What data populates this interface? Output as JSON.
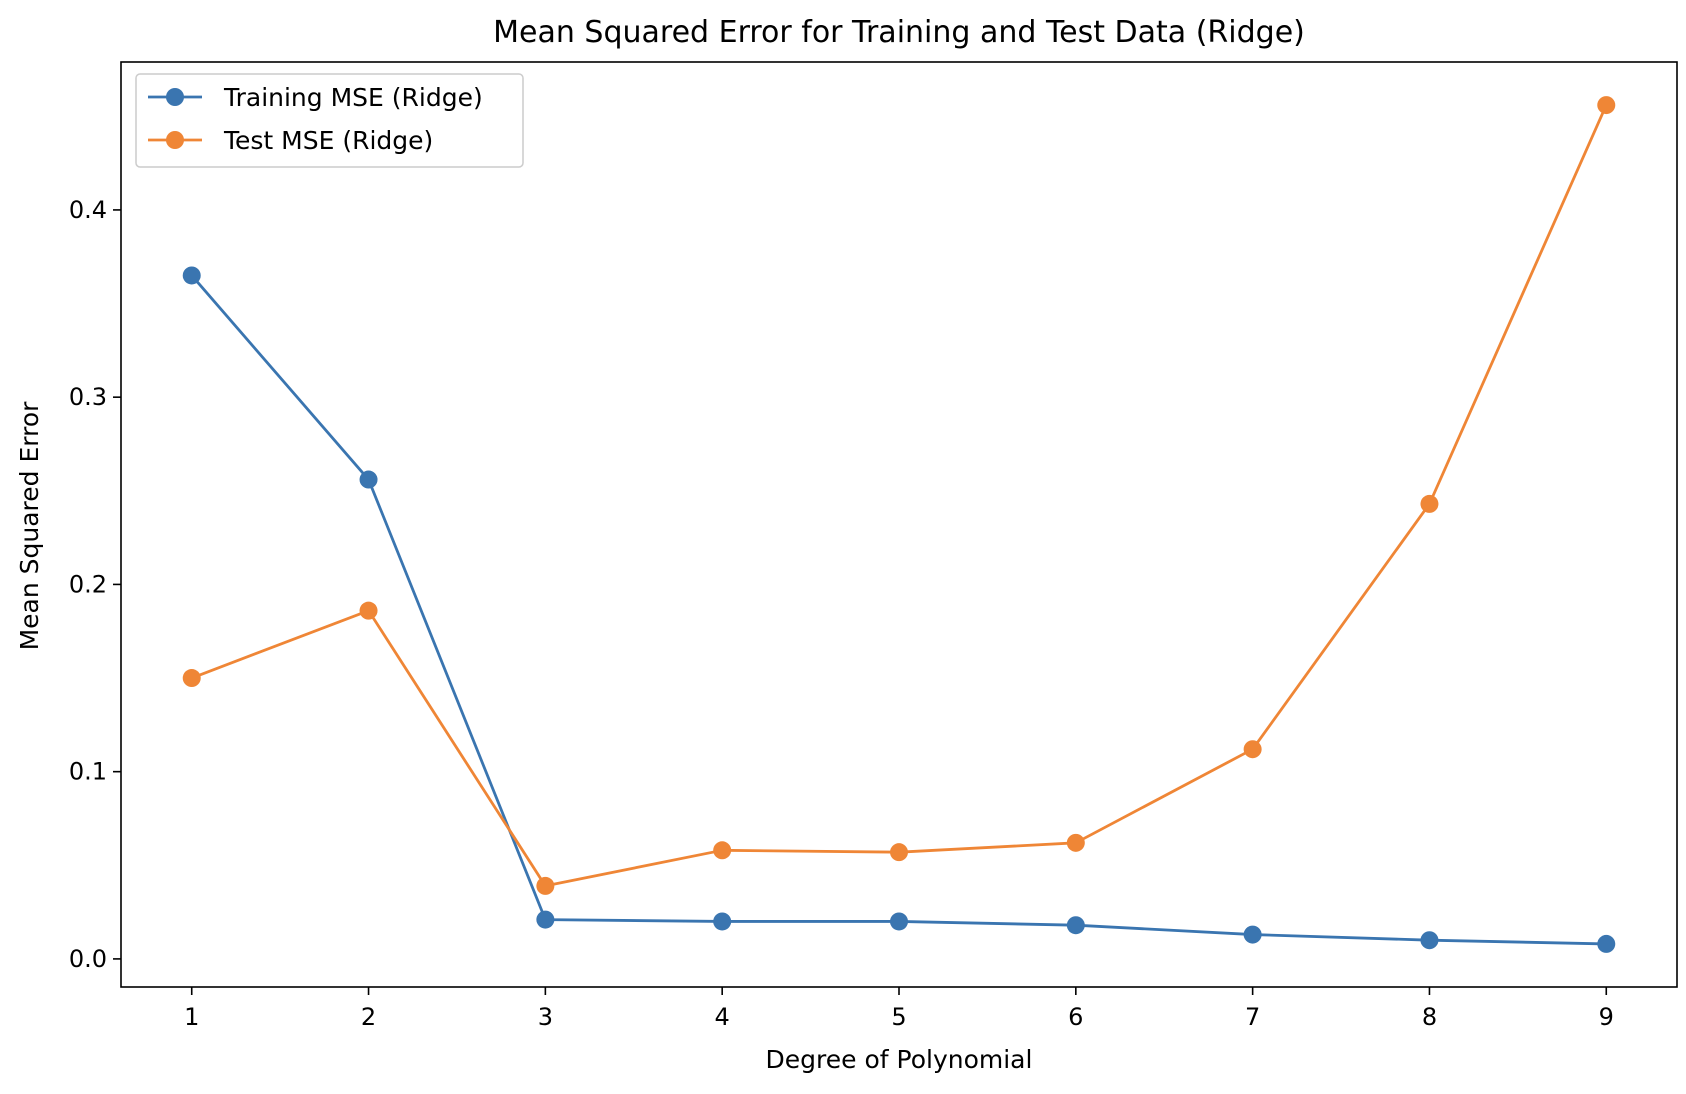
{
  "chart_data": {
    "type": "line",
    "title": "Mean Squared Error for Training and Test Data (Ridge)",
    "xlabel": "Degree of Polynomial",
    "ylabel": "Mean Squared Error",
    "x": [
      1,
      2,
      3,
      4,
      5,
      6,
      7,
      8,
      9
    ],
    "xticks": [
      1,
      2,
      3,
      4,
      5,
      6,
      7,
      8,
      9
    ],
    "xtick_labels": [
      "1",
      "2",
      "3",
      "4",
      "5",
      "6",
      "7",
      "8",
      "9"
    ],
    "yticks": [
      0.0,
      0.1,
      0.2,
      0.3,
      0.4
    ],
    "ytick_labels": [
      "0.0",
      "0.1",
      "0.2",
      "0.3",
      "0.4"
    ],
    "xlim": [
      0.6,
      9.4
    ],
    "ylim": [
      -0.015,
      0.479
    ],
    "grid": false,
    "legend_position": "upper-left",
    "series": [
      {
        "name": "Training MSE (Ridge)",
        "color": "#3a75b0",
        "marker": "circle",
        "values": [
          0.365,
          0.256,
          0.021,
          0.02,
          0.02,
          0.018,
          0.013,
          0.01,
          0.008
        ]
      },
      {
        "name": "Test MSE (Ridge)",
        "color": "#ef8636",
        "marker": "circle",
        "values": [
          0.15,
          0.186,
          0.039,
          0.058,
          0.057,
          0.062,
          0.112,
          0.243,
          0.456
        ]
      }
    ]
  }
}
